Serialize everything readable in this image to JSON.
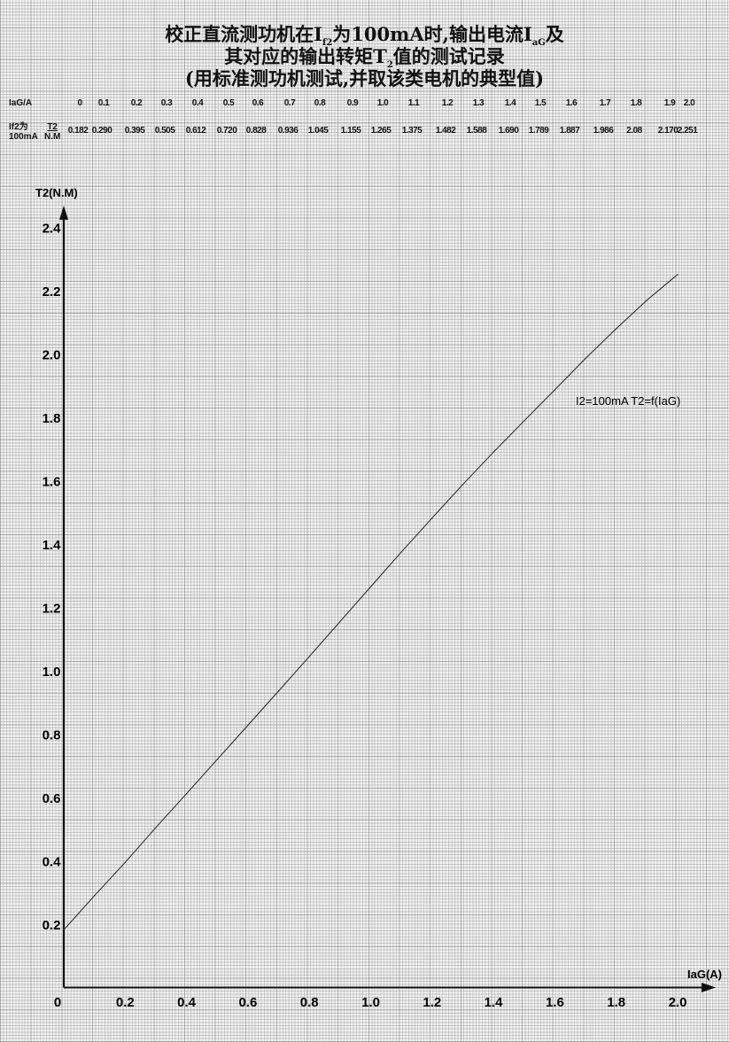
{
  "title": {
    "line1_a": "校正直流测功机在I",
    "line1_sub1": "f2",
    "line1_b": "为100mA时,输出电流I",
    "line1_sub2": "aG",
    "line1_c": "及",
    "line2_a": "其对应的输出转矩T",
    "line2_sub": "2",
    "line2_b": "值的测试记录",
    "line3": "(用标准测功机测试,并取该类电机的典型值)"
  },
  "table": {
    "row1_label": "IaG/A",
    "row2_label_top": "If2为",
    "row2_label_bottom": "100mA",
    "row2_unit_top": "T2",
    "row2_unit_bottom": "N.M",
    "current": [
      "0",
      "0.1",
      "0.2",
      "0.3",
      "0.4",
      "0.5",
      "0.6",
      "0.7",
      "0.8",
      "0.9",
      "1.0",
      "1.1",
      "1.2",
      "1.3",
      "1.4",
      "1.5",
      "1.6",
      "1.7",
      "1.8",
      "1.9",
      "2.0"
    ],
    "torque": [
      "0.182",
      "0.290",
      "0.395",
      "0.505",
      "0.612",
      "0.720",
      "0.828",
      "0.936",
      "1.045",
      "1.155",
      "1.265",
      "1.375",
      "1.482",
      "1.588",
      "1.690",
      "1.789",
      "1.887",
      "1.986",
      "2.08",
      "2.170",
      "2.251"
    ]
  },
  "chart_data": {
    "type": "line",
    "title": "",
    "xlabel": "IaG(A)",
    "ylabel": "T2(N.M)",
    "xlim": [
      0,
      2.0
    ],
    "ylim": [
      0,
      2.4
    ],
    "grid": true,
    "x_ticks": [
      "0",
      "0.2",
      "0.4",
      "0.6",
      "0.8",
      "1.0",
      "1.2",
      "1.4",
      "1.6",
      "1.8",
      "2.0"
    ],
    "y_ticks": [
      "0.2",
      "0.4",
      "0.6",
      "0.8",
      "1.0",
      "1.2",
      "1.4",
      "1.6",
      "1.8",
      "2.0",
      "2.2",
      "2.4"
    ],
    "annotation": "I2=100mA T2=f(IaG)",
    "series": [
      {
        "x": [
          0,
          0.1,
          0.2,
          0.3,
          0.4,
          0.5,
          0.6,
          0.7,
          0.8,
          0.9,
          1.0,
          1.1,
          1.2,
          1.3,
          1.4,
          1.5,
          1.6,
          1.7,
          1.8,
          1.9,
          2.0
        ],
        "y": [
          0.182,
          0.29,
          0.395,
          0.505,
          0.612,
          0.72,
          0.828,
          0.936,
          1.045,
          1.155,
          1.265,
          1.375,
          1.482,
          1.588,
          1.69,
          1.789,
          1.887,
          1.986,
          2.08,
          2.17,
          2.251
        ],
        "color": "#222222"
      }
    ]
  }
}
